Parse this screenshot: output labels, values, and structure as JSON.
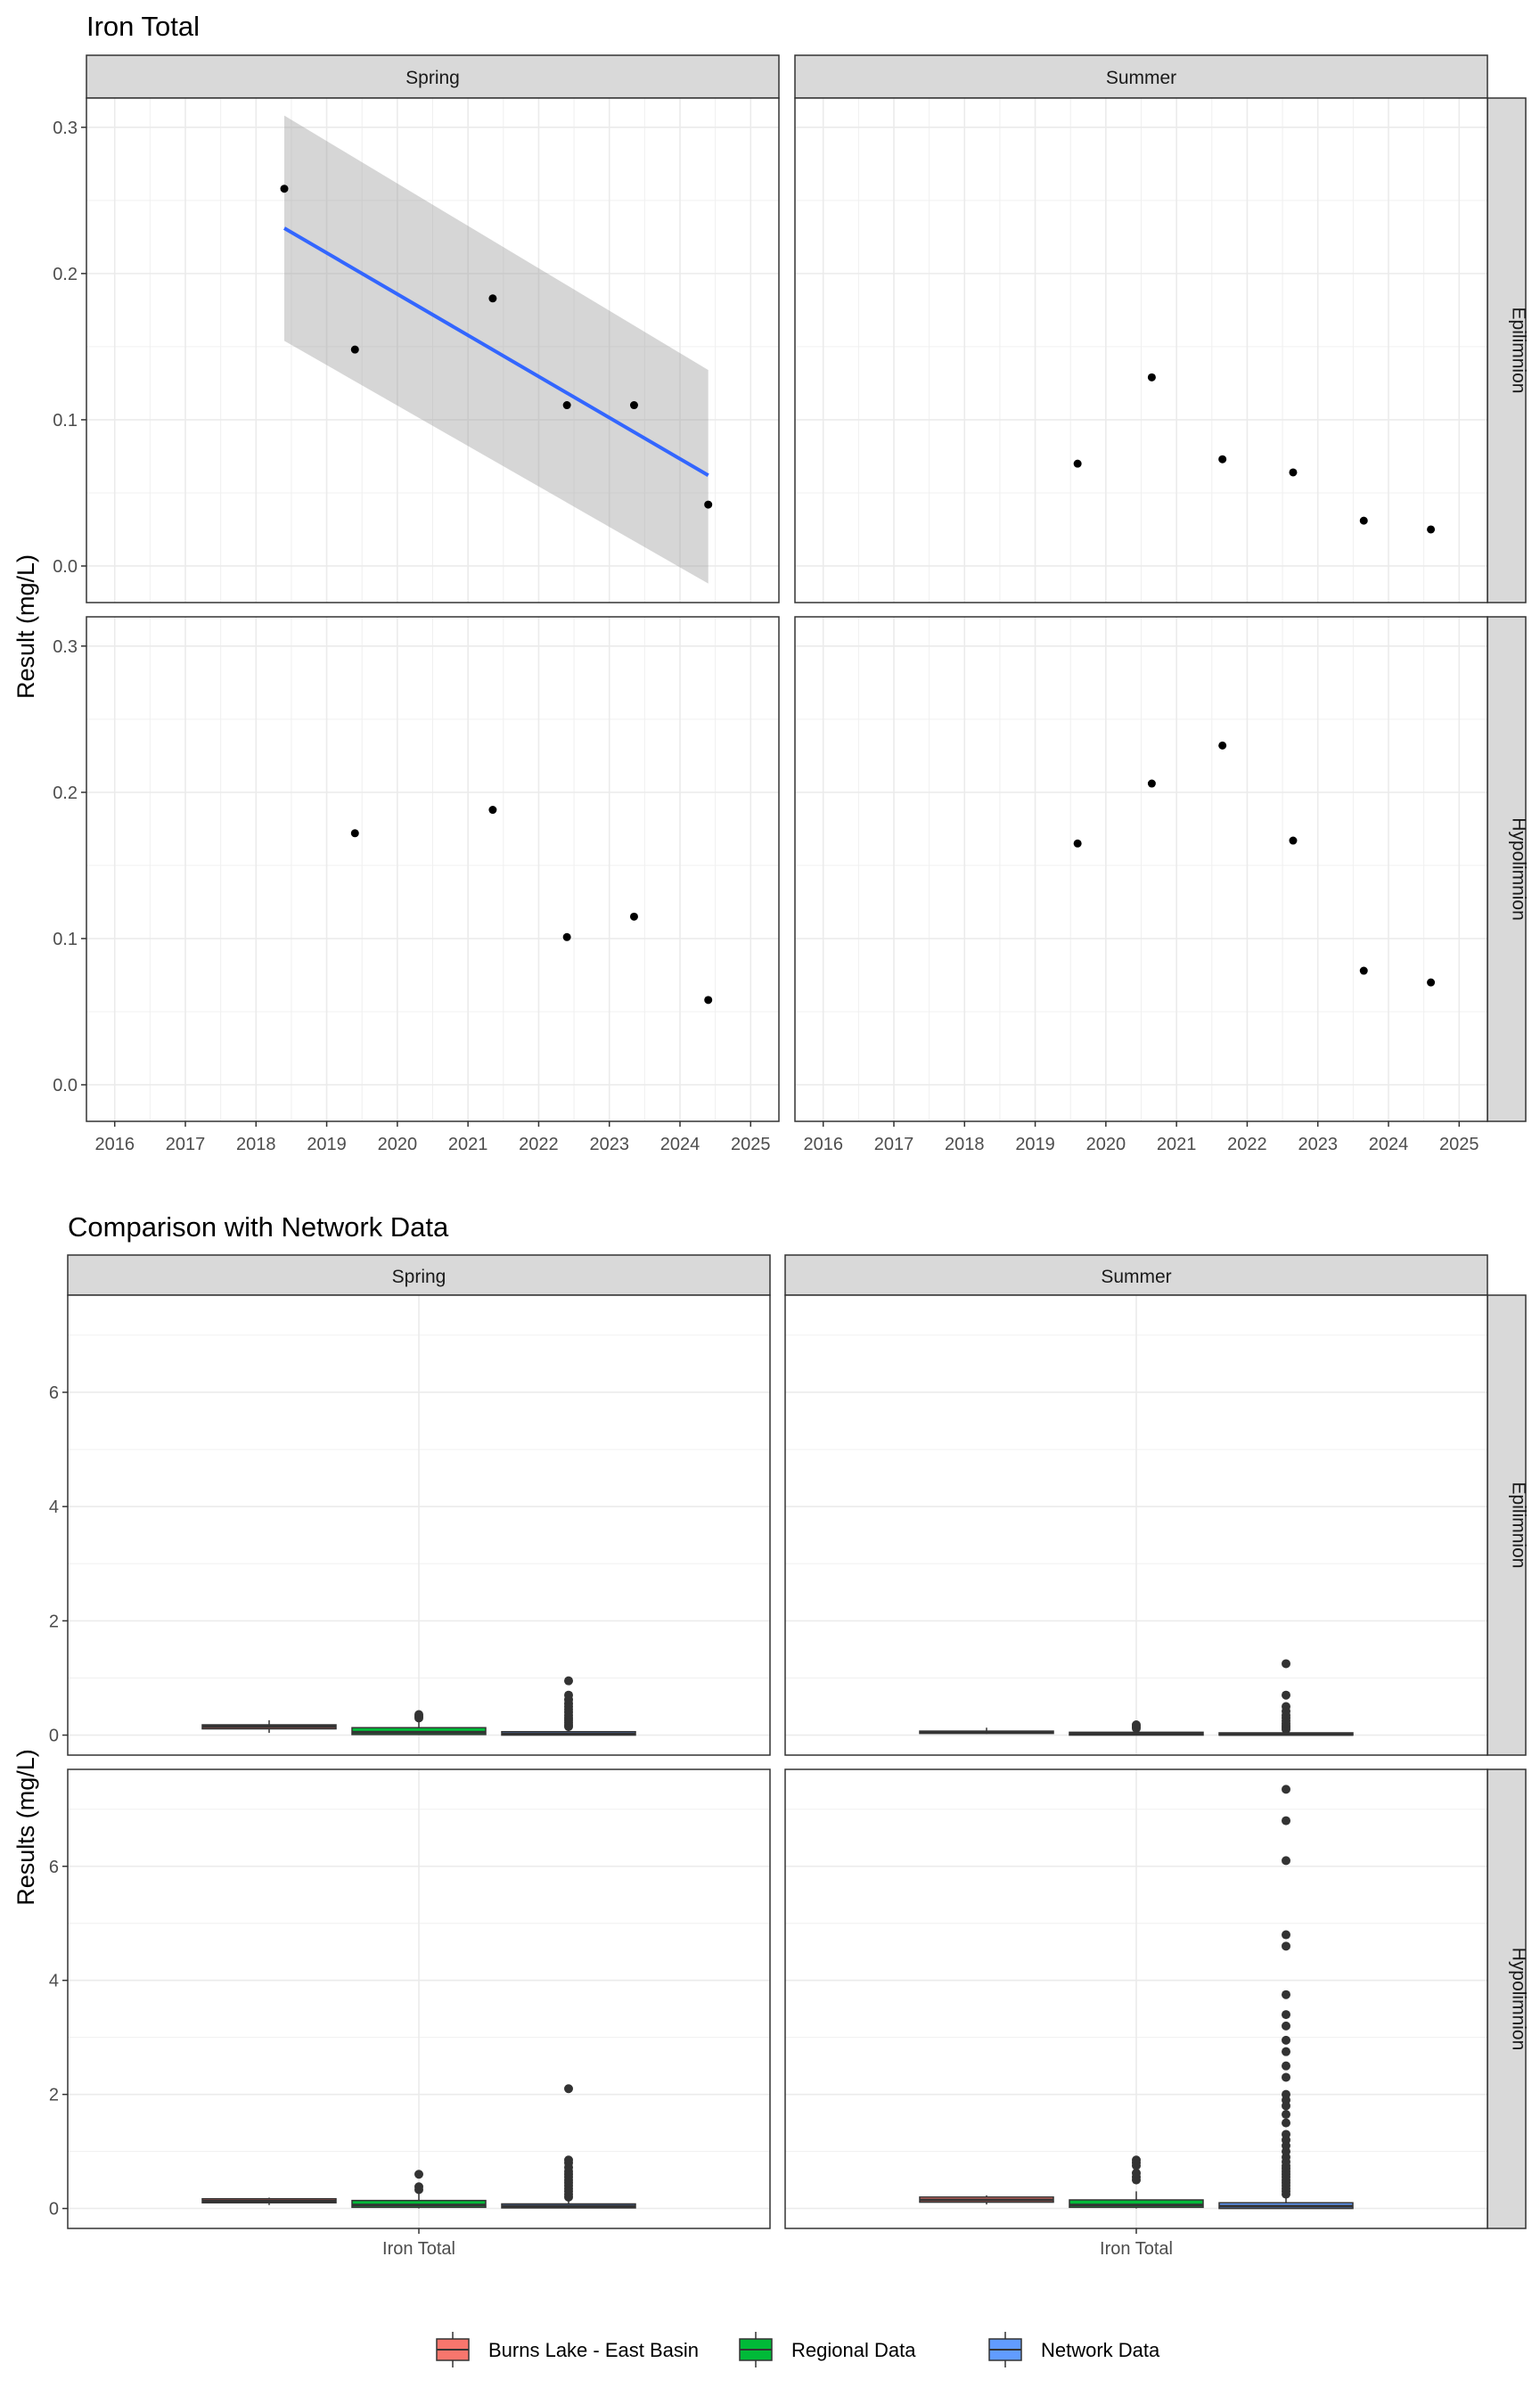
{
  "chart_data": [
    {
      "type": "scatter",
      "title": "Iron Total",
      "xlabel": "",
      "ylabel": "Result (mg/L)",
      "xlim": [
        2015.6,
        2025.4
      ],
      "ylim": [
        -0.025,
        0.32
      ],
      "x_ticks": [
        "2016",
        "2017",
        "2018",
        "2019",
        "2020",
        "2021",
        "2022",
        "2023",
        "2024",
        "2025"
      ],
      "y_ticks": [
        "0.0",
        "0.1",
        "0.2",
        "0.3"
      ],
      "columns": [
        "Spring",
        "Summer"
      ],
      "rows": [
        "Epilimnion",
        "Hypolimnion"
      ],
      "grid": true,
      "panels": [
        {
          "column": "Spring",
          "row": "Epilimnion",
          "points": [
            {
              "x": 2018.4,
              "y": 0.258
            },
            {
              "x": 2019.4,
              "y": 0.148
            },
            {
              "x": 2021.35,
              "y": 0.183
            },
            {
              "x": 2022.4,
              "y": 0.11
            },
            {
              "x": 2023.35,
              "y": 0.11
            },
            {
              "x": 2024.4,
              "y": 0.042
            }
          ],
          "trend": {
            "x": [
              2018.4,
              2024.4
            ],
            "y": [
              0.231,
              0.062
            ],
            "ci_lower": [
              0.154,
              -0.012
            ],
            "ci_upper": [
              0.308,
              0.134
            ]
          }
        },
        {
          "column": "Summer",
          "row": "Epilimnion",
          "points": [
            {
              "x": 2019.6,
              "y": 0.07
            },
            {
              "x": 2020.65,
              "y": 0.129
            },
            {
              "x": 2021.65,
              "y": 0.073
            },
            {
              "x": 2022.65,
              "y": 0.064
            },
            {
              "x": 2023.65,
              "y": 0.031
            },
            {
              "x": 2024.6,
              "y": 0.025
            }
          ]
        },
        {
          "column": "Spring",
          "row": "Hypolimnion",
          "points": [
            {
              "x": 2019.4,
              "y": 0.172
            },
            {
              "x": 2021.35,
              "y": 0.188
            },
            {
              "x": 2022.4,
              "y": 0.101
            },
            {
              "x": 2023.35,
              "y": 0.115
            },
            {
              "x": 2024.4,
              "y": 0.058
            }
          ]
        },
        {
          "column": "Summer",
          "row": "Hypolimnion",
          "points": [
            {
              "x": 2019.6,
              "y": 0.165
            },
            {
              "x": 2020.65,
              "y": 0.206
            },
            {
              "x": 2021.65,
              "y": 0.232
            },
            {
              "x": 2022.65,
              "y": 0.167
            },
            {
              "x": 2023.65,
              "y": 0.078
            },
            {
              "x": 2024.6,
              "y": 0.07
            }
          ]
        }
      ]
    },
    {
      "type": "box",
      "title": "Comparison with Network Data",
      "xlabel": "",
      "ylabel": "Results (mg/L)",
      "ylim": [
        -0.35,
        7.7
      ],
      "y_ticks": [
        "0",
        "2",
        "4",
        "6"
      ],
      "x_category": "Iron Total",
      "columns": [
        "Spring",
        "Summer"
      ],
      "rows": [
        "Epilimnion",
        "Hypolimnion"
      ],
      "grid": true,
      "series": [
        {
          "name": "Burns Lake - East Basin",
          "color": "#F8766D"
        },
        {
          "name": "Regional Data",
          "color": "#00BA38"
        },
        {
          "name": "Network Data",
          "color": "#619CFF"
        }
      ],
      "legend_position": "bottom",
      "panels": [
        {
          "column": "Spring",
          "row": "Epilimnion",
          "boxes": [
            {
              "series": "Burns Lake - East Basin",
              "q1": 0.11,
              "median": 0.15,
              "q3": 0.18,
              "whisker_low": 0.04,
              "whisker_high": 0.26,
              "outliers": []
            },
            {
              "series": "Regional Data",
              "q1": 0.01,
              "median": 0.05,
              "q3": 0.13,
              "whisker_low": 0.0,
              "whisker_high": 0.28,
              "outliers": [
                0.3,
                0.33,
                0.36
              ]
            },
            {
              "series": "Network Data",
              "q1": 0.0,
              "median": 0.02,
              "q3": 0.06,
              "whisker_low": 0.0,
              "whisker_high": 0.12,
              "outliers": [
                0.15,
                0.18,
                0.22,
                0.26,
                0.3,
                0.35,
                0.4,
                0.45,
                0.5,
                0.55,
                0.62,
                0.7,
                0.95
              ]
            }
          ]
        },
        {
          "column": "Summer",
          "row": "Epilimnion",
          "boxes": [
            {
              "series": "Burns Lake - East Basin",
              "q1": 0.03,
              "median": 0.05,
              "q3": 0.07,
              "whisker_low": 0.02,
              "whisker_high": 0.13,
              "outliers": []
            },
            {
              "series": "Regional Data",
              "q1": 0.0,
              "median": 0.02,
              "q3": 0.05,
              "whisker_low": 0.0,
              "whisker_high": 0.1,
              "outliers": [
                0.12,
                0.15,
                0.18
              ]
            },
            {
              "series": "Network Data",
              "q1": 0.0,
              "median": 0.01,
              "q3": 0.04,
              "whisker_low": 0.0,
              "whisker_high": 0.08,
              "outliers": [
                0.1,
                0.13,
                0.16,
                0.2,
                0.25,
                0.3,
                0.35,
                0.42,
                0.5,
                0.7,
                1.25
              ]
            }
          ]
        },
        {
          "column": "Spring",
          "row": "Hypolimnion",
          "boxes": [
            {
              "series": "Burns Lake - East Basin",
              "q1": 0.1,
              "median": 0.13,
              "q3": 0.17,
              "whisker_low": 0.06,
              "whisker_high": 0.19,
              "outliers": []
            },
            {
              "series": "Regional Data",
              "q1": 0.02,
              "median": 0.06,
              "q3": 0.14,
              "whisker_low": 0.0,
              "whisker_high": 0.3,
              "outliers": [
                0.33,
                0.38,
                0.6
              ]
            },
            {
              "series": "Network Data",
              "q1": 0.01,
              "median": 0.04,
              "q3": 0.08,
              "whisker_low": 0.0,
              "whisker_high": 0.16,
              "outliers": [
                0.2,
                0.25,
                0.3,
                0.35,
                0.4,
                0.45,
                0.5,
                0.55,
                0.6,
                0.65,
                0.72,
                0.8,
                0.85,
                2.1
              ]
            }
          ]
        },
        {
          "column": "Summer",
          "row": "Hypolimnion",
          "boxes": [
            {
              "series": "Burns Lake - East Basin",
              "q1": 0.11,
              "median": 0.15,
              "q3": 0.2,
              "whisker_low": 0.07,
              "whisker_high": 0.23,
              "outliers": []
            },
            {
              "series": "Regional Data",
              "q1": 0.02,
              "median": 0.06,
              "q3": 0.15,
              "whisker_low": 0.0,
              "whisker_high": 0.3,
              "outliers": [
                0.5,
                0.55,
                0.62,
                0.75,
                0.8,
                0.85
              ]
            },
            {
              "series": "Network Data",
              "q1": 0.0,
              "median": 0.04,
              "q3": 0.1,
              "whisker_low": 0.0,
              "whisker_high": 0.22,
              "outliers": [
                0.25,
                0.3,
                0.35,
                0.4,
                0.45,
                0.5,
                0.55,
                0.6,
                0.65,
                0.7,
                0.75,
                0.82,
                0.9,
                1.0,
                1.1,
                1.2,
                1.3,
                1.5,
                1.65,
                1.8,
                1.9,
                2.0,
                2.3,
                2.5,
                2.75,
                2.95,
                3.2,
                3.4,
                3.75,
                4.6,
                4.8,
                6.1,
                6.8,
                7.35
              ]
            }
          ]
        }
      ]
    }
  ]
}
